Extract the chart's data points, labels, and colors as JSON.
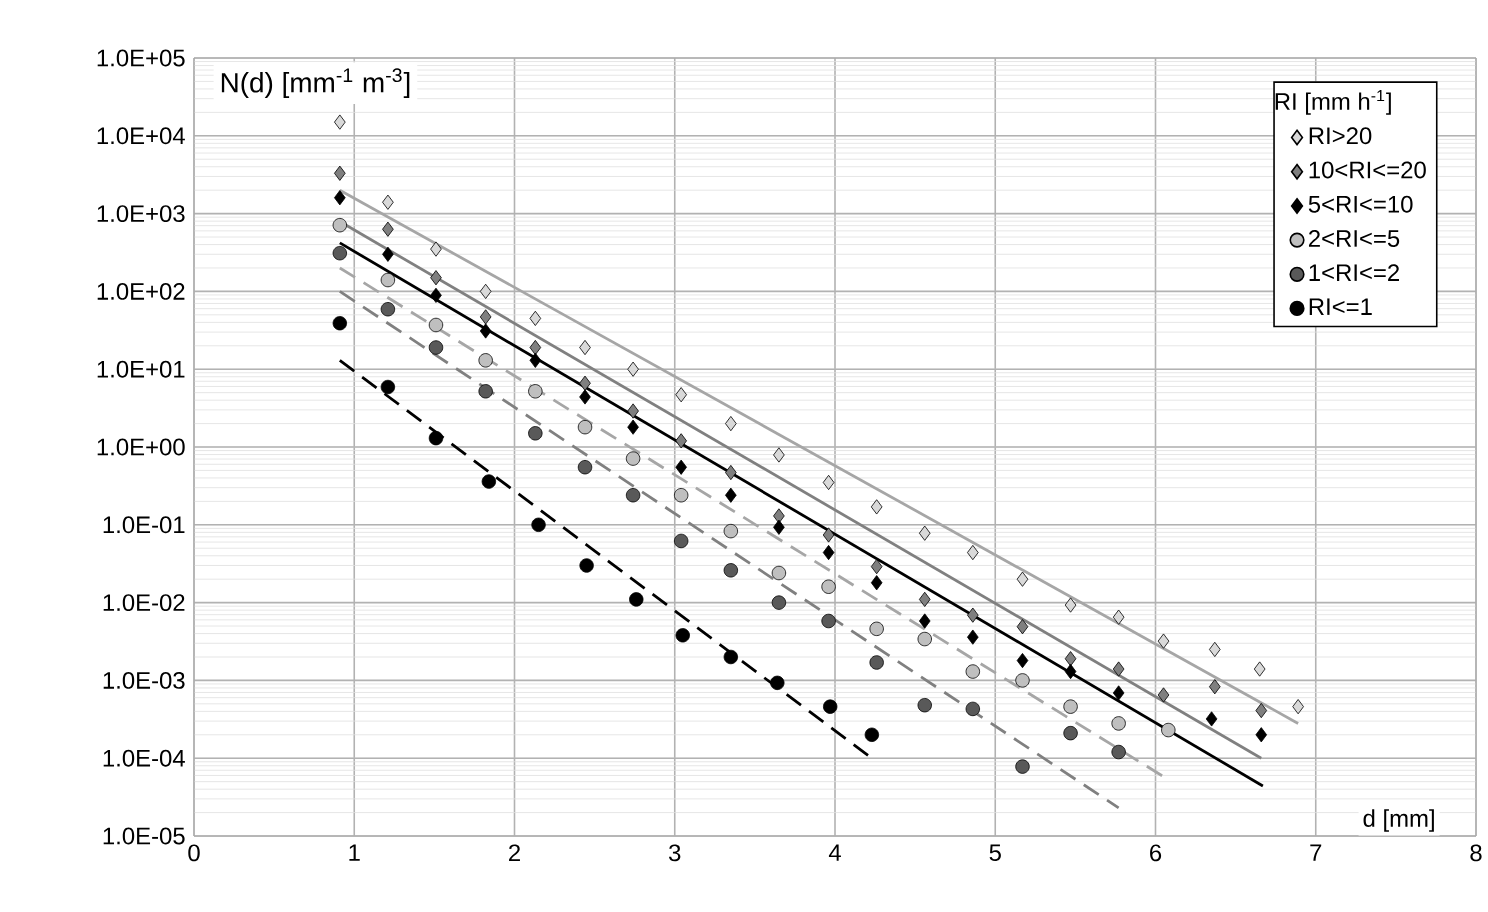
{
  "chart_data": {
    "type": "scatter",
    "xlabel": "d [mm]",
    "ylabel": "N(d) [mm$^{-1}$ m$^{-3}$]",
    "legend_title": "RI [mm h$^{-1}$]",
    "log": "y",
    "grid": true,
    "legend": "top right",
    "xlim": [
      0,
      8
    ],
    "xticks": [
      0,
      1,
      2,
      3,
      4,
      5,
      6,
      7,
      8
    ],
    "ylim": [
      1e-05,
      100000
    ],
    "yticks": [
      {
        "value": 1e-05,
        "label": "1.0E-05"
      },
      {
        "value": 0.0001,
        "label": "1.0E-04"
      },
      {
        "value": 0.001,
        "label": "1.0E-03"
      },
      {
        "value": 0.01,
        "label": "1.0E-02"
      },
      {
        "value": 0.1,
        "label": "1.0E-01"
      },
      {
        "value": 1,
        "label": "1.0E+00"
      },
      {
        "value": 10,
        "label": "1.0E+01"
      },
      {
        "value": 100,
        "label": "1.0E+02"
      },
      {
        "value": 1000,
        "label": "1.0E+03"
      },
      {
        "value": 10000,
        "label": "1.0E+04"
      },
      {
        "value": 100000,
        "label": "1.0E+05"
      }
    ],
    "series": [
      {
        "name": "RI>20",
        "type": "scatter",
        "marker": "diamond",
        "color": "#d9d9d9",
        "x": [
          0.91,
          1.21,
          1.51,
          1.82,
          2.13,
          2.44,
          2.74,
          3.04,
          3.35,
          3.65,
          3.96,
          4.26,
          4.56,
          4.86,
          5.17,
          5.47,
          5.77,
          6.05,
          6.37,
          6.65,
          6.89
        ],
        "values": [
          15000,
          1400,
          350,
          100,
          45,
          19,
          10,
          4.7,
          2.0,
          0.79,
          0.35,
          0.17,
          0.078,
          0.044,
          0.02,
          0.0093,
          0.0065,
          0.0032,
          0.0025,
          0.0014,
          0.00046
        ]
      },
      {
        "name": "10<RI<=20",
        "type": "scatter",
        "marker": "diamond",
        "color": "#7f7f7f",
        "x": [
          0.91,
          1.21,
          1.51,
          1.82,
          2.13,
          2.44,
          2.74,
          3.04,
          3.35,
          3.65,
          3.96,
          4.26,
          4.56,
          4.86,
          5.17,
          5.47,
          5.77,
          6.05,
          6.37,
          6.66
        ],
        "values": [
          3300,
          630,
          150,
          47,
          19,
          6.6,
          2.9,
          1.2,
          0.47,
          0.13,
          0.074,
          0.029,
          0.011,
          0.0069,
          0.0049,
          0.0019,
          0.0014,
          0.00065,
          0.00083,
          0.00041
        ]
      },
      {
        "name": "5<RI<=10",
        "type": "scatter",
        "marker": "diamond",
        "color": "#000000",
        "x": [
          0.91,
          1.21,
          1.51,
          1.82,
          2.13,
          2.44,
          2.74,
          3.04,
          3.35,
          3.65,
          3.96,
          4.26,
          4.56,
          4.86,
          5.17,
          5.47,
          5.77,
          6.35,
          6.66
        ],
        "values": [
          1600,
          300,
          89,
          31,
          13,
          4.4,
          1.8,
          0.55,
          0.24,
          0.093,
          0.044,
          0.018,
          0.0058,
          0.0036,
          0.0018,
          0.0013,
          0.00069,
          0.00032,
          0.0002
        ]
      },
      {
        "name": "2<RI<=5",
        "type": "scatter",
        "marker": "circle",
        "color": "#bfbfbf",
        "x": [
          0.91,
          1.21,
          1.51,
          1.82,
          2.13,
          2.44,
          2.74,
          3.04,
          3.35,
          3.65,
          3.96,
          4.26,
          4.56,
          4.86,
          5.17,
          5.47,
          5.77,
          6.08
        ],
        "values": [
          710,
          140,
          37,
          13,
          5.2,
          1.8,
          0.71,
          0.24,
          0.083,
          0.024,
          0.016,
          0.0046,
          0.0034,
          0.0013,
          0.001,
          0.00046,
          0.00028,
          0.00023
        ]
      },
      {
        "name": "1<RI<=2",
        "type": "scatter",
        "marker": "circle",
        "color": "#595959",
        "x": [
          0.91,
          1.21,
          1.51,
          1.82,
          2.13,
          2.44,
          2.74,
          3.04,
          3.35,
          3.65,
          3.96,
          4.26,
          4.56,
          4.86,
          5.17,
          5.47,
          5.77
        ],
        "values": [
          310,
          59,
          19,
          5.2,
          1.5,
          0.55,
          0.24,
          0.062,
          0.026,
          0.01,
          0.0058,
          0.0017,
          0.00048,
          0.00043,
          7.8e-05,
          0.00021,
          0.00012
        ]
      },
      {
        "name": "RI<=1",
        "type": "scatter",
        "marker": "circle",
        "color": "#000000",
        "x": [
          0.91,
          1.21,
          1.51,
          1.84,
          2.15,
          2.45,
          2.76,
          3.05,
          3.35,
          3.64,
          3.97,
          4.23
        ],
        "values": [
          39,
          5.9,
          1.3,
          0.36,
          0.1,
          0.03,
          0.011,
          0.0038,
          0.002,
          0.00093,
          0.00046,
          0.0002
        ]
      },
      {
        "type": "line",
        "marker": "none",
        "line_style": "solid",
        "color": "#a6a6a6",
        "x": [
          0.91,
          6.89
        ],
        "values": [
          2000,
          0.00028
        ]
      },
      {
        "type": "line",
        "marker": "none",
        "line_style": "solid",
        "color": "#808080",
        "x": [
          0.91,
          6.66
        ],
        "values": [
          790,
          0.0001
        ]
      },
      {
        "type": "line",
        "marker": "none",
        "line_style": "solid",
        "color": "#000000",
        "x": [
          0.91,
          6.67
        ],
        "values": [
          420,
          4.4e-05
        ]
      },
      {
        "type": "line",
        "marker": "none",
        "line_style": "dashed",
        "color": "#a6a6a6",
        "x": [
          0.91,
          6.05
        ],
        "values": [
          200,
          5.8e-05
        ]
      },
      {
        "type": "line",
        "marker": "none",
        "line_style": "dashed",
        "color": "#808080",
        "x": [
          0.91,
          5.77
        ],
        "values": [
          100,
          2.3e-05
        ]
      },
      {
        "type": "line",
        "marker": "none",
        "line_style": "dashed",
        "color": "#000000",
        "x": [
          0.91,
          4.23
        ],
        "values": [
          13,
          0.0001
        ]
      }
    ]
  }
}
